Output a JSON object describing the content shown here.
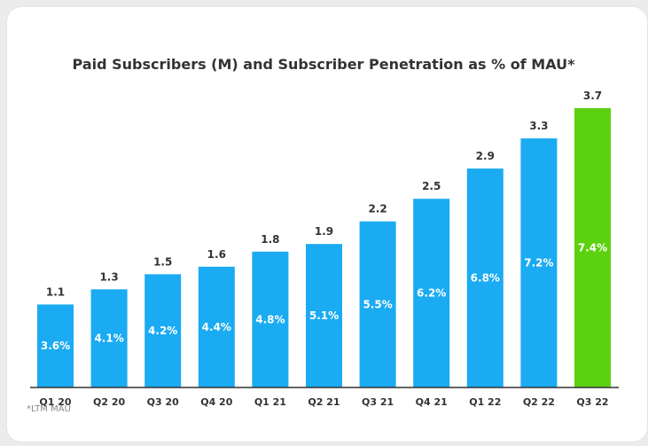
{
  "chart_data": {
    "type": "bar",
    "title": "Paid Subscribers (M) and Subscriber Penetration as % of MAU*",
    "xlabel": "",
    "ylabel": "",
    "ylim": [
      0,
      3.7
    ],
    "categories": [
      "Q1 20",
      "Q2 20",
      "Q3 20",
      "Q4 20",
      "Q1 21",
      "Q2 21",
      "Q3 21",
      "Q4 21",
      "Q1 22",
      "Q2 22",
      "Q3 22"
    ],
    "series": [
      {
        "name": "Paid Subscribers (M)",
        "values": [
          1.1,
          1.3,
          1.5,
          1.6,
          1.8,
          1.9,
          2.2,
          2.5,
          2.9,
          3.3,
          3.7
        ],
        "labels": [
          "1.1",
          "1.3",
          "1.5",
          "1.6",
          "1.8",
          "1.9",
          "2.2",
          "2.5",
          "2.9",
          "3.3",
          "3.7"
        ]
      },
      {
        "name": "Subscriber Penetration as % of MAU",
        "values": [
          3.6,
          4.1,
          4.2,
          4.4,
          4.8,
          5.1,
          5.5,
          6.2,
          6.8,
          7.2,
          7.4
        ],
        "labels": [
          "3.6%",
          "4.1%",
          "4.2%",
          "4.4%",
          "4.8%",
          "5.1%",
          "5.5%",
          "6.2%",
          "6.8%",
          "7.2%",
          "7.4%"
        ]
      }
    ],
    "highlight_index": 10,
    "grid": false,
    "legend": "none",
    "colors": {
      "bar": "#1aabf2",
      "highlight": "#5bd10f",
      "axis": "#333333"
    }
  },
  "footnote": "*LTM MAU"
}
